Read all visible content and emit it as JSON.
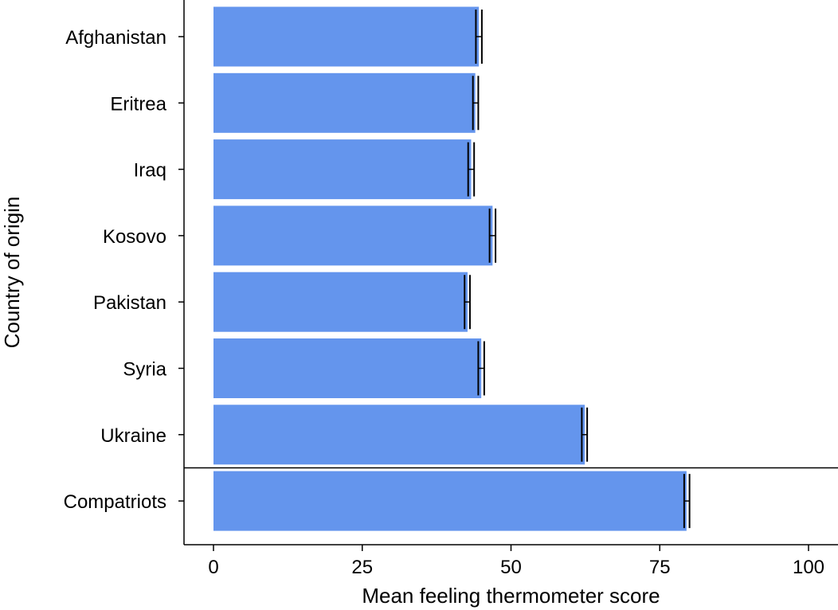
{
  "chart_data": {
    "type": "bar",
    "orientation": "horizontal",
    "categories": [
      "Afghanistan",
      "Eritrea",
      "Iraq",
      "Kosovo",
      "Pakistan",
      "Syria",
      "Ukraine",
      "Compatriots"
    ],
    "values": [
      44.6,
      44.0,
      43.3,
      46.9,
      42.7,
      45.0,
      62.4,
      79.5
    ],
    "error_low": [
      44.1,
      43.6,
      42.8,
      46.4,
      42.2,
      44.5,
      61.9,
      79.1
    ],
    "error_high": [
      45.1,
      44.5,
      43.8,
      47.4,
      43.1,
      45.5,
      62.8,
      80.0
    ],
    "xlabel": "Mean feeling thermometer score",
    "ylabel": "Country of origin",
    "xlim": [
      0,
      100
    ],
    "xticks": [
      "0",
      "25",
      "50",
      "75",
      "100"
    ],
    "xtick_values": [
      0,
      25,
      50,
      75,
      100
    ],
    "separator_after_index": 6,
    "grid": false,
    "bar_color": "#6495ED",
    "error_color": "#000000"
  }
}
